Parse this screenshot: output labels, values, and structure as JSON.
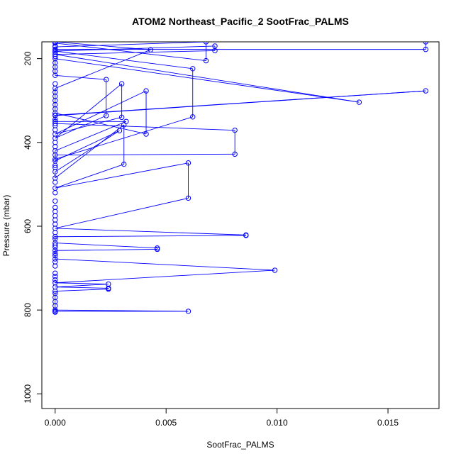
{
  "chart_data": {
    "type": "line",
    "title": "ATOM2 Northeast_Pacific_2 SootFrac_PALMS",
    "xlabel": "SootFrac_PALMS",
    "ylabel": "Pressure (mbar)",
    "xlim": [
      -0.0006,
      0.0173
    ],
    "ylim": [
      1035,
      160
    ],
    "y_reversed": true,
    "x_ticks": [
      0.0,
      0.005,
      0.01,
      0.015
    ],
    "x_tick_labels": [
      "0.000",
      "0.005",
      "0.010",
      "0.015"
    ],
    "y_ticks": [
      200,
      400,
      600,
      800,
      1000
    ],
    "y_tick_labels": [
      "200",
      "400",
      "600",
      "800",
      "1000"
    ],
    "marker": "open-circle",
    "grid": false,
    "legend": "none",
    "series_color": "#0000ff",
    "series": [
      {
        "points": [
          [
            0.0,
            805
          ],
          [
            0.0,
            803
          ],
          [
            0.006,
            803
          ],
          [
            0.0,
            800
          ],
          [
            0.0,
            790
          ],
          [
            0.0,
            780
          ],
          [
            0.0,
            770
          ],
          [
            0.0,
            760
          ],
          [
            0.0,
            755
          ],
          [
            0.0024,
            750
          ],
          [
            0.0024,
            748
          ],
          [
            0.0,
            745
          ],
          [
            0.0024,
            738
          ],
          [
            0.0,
            735
          ],
          [
            0.0099,
            705
          ],
          [
            0.0,
            678
          ],
          [
            0.0,
            665
          ],
          [
            0.0,
            658
          ],
          [
            0.0046,
            655
          ],
          [
            0.0046,
            652
          ],
          [
            0.0,
            640
          ],
          [
            0.0,
            630
          ],
          [
            0.0,
            625
          ],
          [
            0.0086,
            622
          ],
          [
            0.0086,
            621
          ],
          [
            0.0,
            605
          ],
          [
            0.006,
            533
          ],
          [
            0.006,
            449
          ],
          [
            0.0,
            509
          ],
          [
            0.0031,
            452
          ],
          [
            0.0031,
            358
          ],
          [
            0.0,
            485
          ],
          [
            0.0,
            470
          ],
          [
            0.0029,
            372
          ],
          [
            0.0,
            444
          ],
          [
            0.0,
            430
          ],
          [
            0.0081,
            428
          ],
          [
            0.0081,
            371
          ],
          [
            0.0,
            355
          ],
          [
            0.0,
            345
          ],
          [
            0.0,
            335
          ],
          [
            0.0167,
            277
          ],
          [
            0.0,
            336
          ],
          [
            0.0,
            350
          ],
          [
            0.0032,
            350
          ],
          [
            0.0,
            420
          ],
          [
            0.0,
            440
          ],
          [
            0.0062,
            339
          ],
          [
            0.0062,
            224
          ],
          [
            0.0,
            182
          ],
          [
            0.0072,
            170
          ],
          [
            0.0072,
            181
          ],
          [
            0.0,
            190
          ],
          [
            0.0137,
            304
          ],
          [
            0.0,
            200
          ],
          [
            0.0,
            220
          ],
          [
            0.0,
            240
          ],
          [
            0.0023,
            250
          ],
          [
            0.0023,
            336
          ],
          [
            0.0,
            390
          ],
          [
            0.003,
            260
          ],
          [
            0.003,
            340
          ],
          [
            0.0,
            380
          ],
          [
            0.0041,
            277
          ],
          [
            0.0041,
            380
          ],
          [
            0.0,
            330
          ],
          [
            0.0,
            290
          ],
          [
            0.0,
            271
          ],
          [
            0.0043,
            179
          ],
          [
            0.0,
            160
          ],
          [
            0.0,
            163
          ],
          [
            0.0068,
            205
          ],
          [
            0.0068,
            160
          ],
          [
            0.0,
            172
          ],
          [
            0.0,
            178
          ],
          [
            0.0167,
            178
          ],
          [
            0.0167,
            160
          ]
        ]
      },
      {
        "markers_only": true,
        "points": [
          [
            0.0,
            170
          ],
          [
            0.0,
            185
          ],
          [
            0.0,
            195
          ],
          [
            0.0,
            210
          ],
          [
            0.0,
            230
          ],
          [
            0.0,
            260
          ],
          [
            0.0,
            280
          ],
          [
            0.0,
            300
          ],
          [
            0.0,
            310
          ],
          [
            0.0,
            320
          ],
          [
            0.0,
            360
          ],
          [
            0.0,
            370
          ],
          [
            0.0,
            400
          ],
          [
            0.0,
            410
          ],
          [
            0.0,
            455
          ],
          [
            0.0,
            460
          ],
          [
            0.0,
            495
          ],
          [
            0.0,
            520
          ],
          [
            0.0,
            540
          ],
          [
            0.0,
            555
          ],
          [
            0.0,
            565
          ],
          [
            0.0,
            575
          ],
          [
            0.0,
            585
          ],
          [
            0.0,
            595
          ],
          [
            0.0,
            615
          ],
          [
            0.0,
            645
          ],
          [
            0.0,
            650
          ],
          [
            0.0,
            670
          ],
          [
            0.0,
            685
          ],
          [
            0.0,
            695
          ],
          [
            0.0,
            712
          ],
          [
            0.0,
            720
          ],
          [
            0.0,
            728
          ]
        ]
      }
    ]
  }
}
